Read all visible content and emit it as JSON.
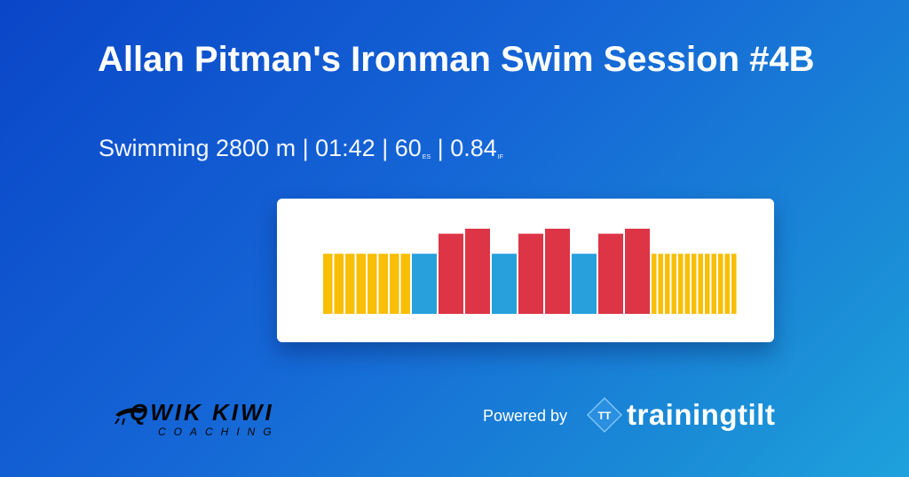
{
  "header": {
    "title": "Allan Pitman's Ironman Swim Session #4B",
    "sport": "Swimming 2800 m",
    "sep1": "|",
    "duration": "01:42",
    "sep2": "|",
    "es_value": "60",
    "es_unit": "ES",
    "sep3": "|",
    "if_value": "0.84",
    "if_unit": "IF"
  },
  "colors": {
    "warmup": "#f9be06",
    "steady": "#27a0dc",
    "hard": "#dd3546"
  },
  "workout_profile": {
    "segments": [
      {
        "zone": "warmup",
        "count": 8,
        "intensity": 0.6
      },
      {
        "zone": "steady",
        "count": 1,
        "intensity": 0.6
      },
      {
        "zone": "hard",
        "count": 1,
        "intensity": 0.8
      },
      {
        "zone": "hard",
        "count": 1,
        "intensity": 0.85
      },
      {
        "zone": "steady",
        "count": 1,
        "intensity": 0.6
      },
      {
        "zone": "hard",
        "count": 1,
        "intensity": 0.8
      },
      {
        "zone": "hard",
        "count": 1,
        "intensity": 0.85
      },
      {
        "zone": "steady",
        "count": 1,
        "intensity": 0.6
      },
      {
        "zone": "hard",
        "count": 1,
        "intensity": 0.8
      },
      {
        "zone": "hard",
        "count": 1,
        "intensity": 0.85
      },
      {
        "zone": "warmup",
        "count": 13,
        "intensity": 0.6
      }
    ]
  },
  "branding": {
    "coach_name": "QWIK KIWI",
    "coach_tagline": "COACHING",
    "powered_by": "Powered by",
    "logo_mark": "TT",
    "logo_word": "trainingtilt",
    "logo_icon": "trainingtilt-diamond-icon"
  }
}
